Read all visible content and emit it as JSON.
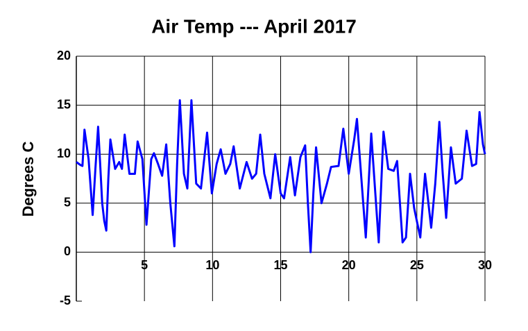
{
  "chart_data": {
    "type": "line",
    "title": "Air Temp --- April 2017",
    "y_label": "Degrees C",
    "x": [
      0,
      0.3,
      0.45,
      0.6,
      0.9,
      1.2,
      1.4,
      1.6,
      1.75,
      1.9,
      2.05,
      2.2,
      2.35,
      2.5,
      2.85,
      3.15,
      3.35,
      3.55,
      3.9,
      4.3,
      4.5,
      4.85,
      5.15,
      5.5,
      5.7,
      6.0,
      6.3,
      6.6,
      6.9,
      7.2,
      7.4,
      7.6,
      7.9,
      8.15,
      8.45,
      8.8,
      9.15,
      9.6,
      9.95,
      10.3,
      10.6,
      10.95,
      11.3,
      11.55,
      12.0,
      12.5,
      12.9,
      13.2,
      13.5,
      13.8,
      14.25,
      14.6,
      15.0,
      15.25,
      15.7,
      16.05,
      16.45,
      16.8,
      17.0,
      17.2,
      17.4,
      17.6,
      18.0,
      18.4,
      18.7,
      19.25,
      19.6,
      20.0,
      20.4,
      20.6,
      20.9,
      21.25,
      21.65,
      21.95,
      22.2,
      22.55,
      22.9,
      23.3,
      23.55,
      23.95,
      24.2,
      24.5,
      24.8,
      25.25,
      25.6,
      26.05,
      26.35,
      26.65,
      26.9,
      27.15,
      27.5,
      27.85,
      28.3,
      28.65,
      29.05,
      29.35,
      29.6,
      29.85,
      30.0
    ],
    "series": [
      {
        "name": "Air Temp",
        "color": "#0000ff",
        "values": [
          9.2,
          8.9,
          8.8,
          12.5,
          9.5,
          3.8,
          8.5,
          12.8,
          9.0,
          5.0,
          3.2,
          2.2,
          7.5,
          11.5,
          8.5,
          9.2,
          8.5,
          12.0,
          8.0,
          8.0,
          11.3,
          9.5,
          2.8,
          9.5,
          10.1,
          9.0,
          7.8,
          11.0,
          5.0,
          0.6,
          9.0,
          15.5,
          8.0,
          6.5,
          15.5,
          7.0,
          6.5,
          12.2,
          6.0,
          9.0,
          10.5,
          8.0,
          9.0,
          10.8,
          6.5,
          9.2,
          7.5,
          8.0,
          12.0,
          8.0,
          5.5,
          10.0,
          6.0,
          5.5,
          9.7,
          5.8,
          9.7,
          10.9,
          5.0,
          0.0,
          6.0,
          10.7,
          5.0,
          7.0,
          8.7,
          8.8,
          12.6,
          8.0,
          11.5,
          13.6,
          8.0,
          1.5,
          12.1,
          6.0,
          1.0,
          12.3,
          8.5,
          8.3,
          9.3,
          1.0,
          1.5,
          8.0,
          4.5,
          1.5,
          8.0,
          2.5,
          7.0,
          13.3,
          8.0,
          3.5,
          10.7,
          7.0,
          7.5,
          12.4,
          8.8,
          9.0,
          14.3,
          11.0,
          10.0
        ]
      }
    ],
    "xlim": [
      0,
      30
    ],
    "ylim": [
      -5,
      20
    ],
    "xticks": [
      5,
      10,
      15,
      20,
      25,
      30
    ],
    "yticks": [
      -5,
      0,
      5,
      10,
      15,
      20
    ],
    "grid": true
  }
}
